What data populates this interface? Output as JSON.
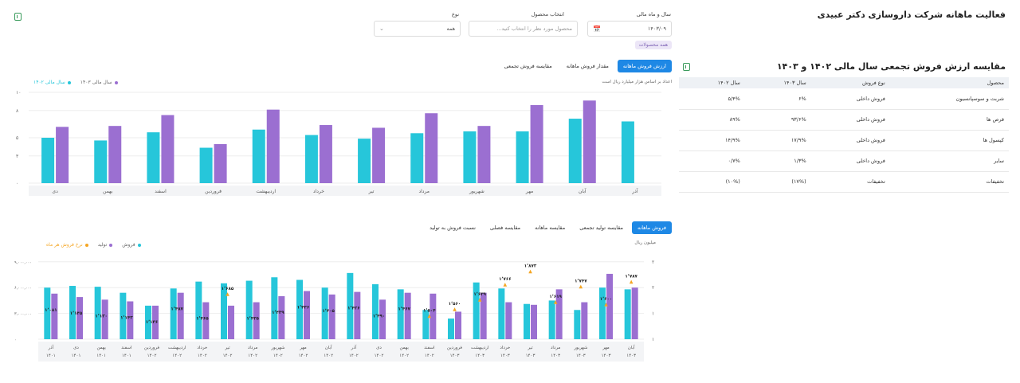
{
  "header": {
    "title": "فعالیت ماهانه شرکت داروسازی دکتر عبیدی"
  },
  "filters": {
    "year_month": {
      "label": "سال و ماه مالی",
      "value": "۱۴۰۳/۰۹"
    },
    "product": {
      "label": "انتخاب محصول",
      "placeholder": "محصول مورد نظر را انتخاب کنید..."
    },
    "type": {
      "label": "نوع",
      "value": "همه"
    },
    "chip": "همه محصولات"
  },
  "chart1": {
    "tabs": [
      "ارزش فروش ماهانه",
      "مقدار فروش ماهانه",
      "مقایسه فروش تجمعی"
    ],
    "active_tab": 0,
    "note": "اعداد بر اساس هزار میلیارد ریال است",
    "legend": [
      "سال مالی ۱۴۰۳",
      "سال مالی ۱۴۰۲"
    ],
    "colors": {
      "y1403": "#9b6fd1",
      "y1402": "#26c6da"
    }
  },
  "chart2": {
    "tabs": [
      "فروش ماهانه",
      "مقایسه تولید تجمعی",
      "مقایسه ماهانه",
      "مقایسه فصلی",
      "نسبت فروش به تولید"
    ],
    "active_tab": 0,
    "unit": "میلیون ریال",
    "legend": [
      "فروش",
      "تولید",
      "نرخ فروش هر ماه"
    ],
    "colors": {
      "sales": "#26c6da",
      "production": "#9b6fd1",
      "rate": "#f5a623"
    }
  },
  "chart_data": [
    {
      "type": "bar",
      "title": "",
      "ylim": [
        0,
        10
      ],
      "yticks": [
        "۰",
        "۳",
        "۵",
        "۸",
        "۱۰"
      ],
      "categories": [
        "آذر",
        "آبان",
        "مهر",
        "شهریور",
        "مرداد",
        "تیر",
        "خرداد",
        "اردیبهشت",
        "فروردین",
        "اسفند",
        "بهمن",
        "دی"
      ],
      "series": [
        {
          "name": "سال مالی ۱۴۰۲",
          "values": [
            6.8,
            7.1,
            5.7,
            5.7,
            5.5,
            4.9,
            5.3,
            5.9,
            3.9,
            5.6,
            4.7,
            5.0
          ]
        },
        {
          "name": "سال مالی ۱۴۰۳",
          "values": [
            null,
            9.1,
            8.6,
            6.3,
            7.7,
            6.1,
            6.4,
            8.1,
            4.3,
            7.5,
            6.3,
            6.2
          ]
        }
      ]
    },
    {
      "type": "bar",
      "title": "",
      "ylim": [
        0,
        10000000
      ],
      "yticks": [
        "۰",
        "۳,۰۰۰,۰۰۰",
        "۶,۰۰۰,۰۰۰",
        "۹,۰۰۰,۰۰۰"
      ],
      "y2ticks": [
        "۱",
        "۱",
        "۲",
        "۲"
      ],
      "categories": [
        [
          "آبان",
          "۱۴۰۳"
        ],
        [
          "مهر",
          "۱۴۰۳"
        ],
        [
          "شهریور",
          "۱۴۰۳"
        ],
        [
          "مرداد",
          "۱۴۰۳"
        ],
        [
          "تیر",
          "۱۴۰۳"
        ],
        [
          "خرداد",
          "۱۴۰۳"
        ],
        [
          "اردیبهشت",
          "۱۴۰۳"
        ],
        [
          "فروردین",
          "۱۴۰۳"
        ],
        [
          "اسفند",
          "۱۴۰۲"
        ],
        [
          "بهمن",
          "۱۴۰۲"
        ],
        [
          "دی",
          "۱۴۰۲"
        ],
        [
          "آذر",
          "۱۴۰۲"
        ],
        [
          "آبان",
          "۱۴۰۲"
        ],
        [
          "مهر",
          "۱۴۰۲"
        ],
        [
          "شهریور",
          "۱۴۰۲"
        ],
        [
          "مرداد",
          "۱۴۰۲"
        ],
        [
          "تیر",
          "۱۴۰۲"
        ],
        [
          "خرداد",
          "۱۴۰۲"
        ],
        [
          "اردیبهشت",
          "۱۴۰۲"
        ],
        [
          "فروردین",
          "۱۴۰۲"
        ],
        [
          "اسفند",
          "۱۴۰۱"
        ],
        [
          "بهمن",
          "۱۴۰۱"
        ],
        [
          "دی",
          "۱۴۰۱"
        ],
        [
          "آذر",
          "۱۴۰۱"
        ]
      ],
      "series": [
        {
          "name": "فروش",
          "values": [
            5.8,
            6.0,
            3.4,
            4.5,
            4.1,
            5.9,
            6.6,
            2.4,
            3.4,
            5.8,
            6.4,
            7.7,
            6.0,
            6.9,
            7.2,
            6.8,
            6.5,
            6.7,
            5.9,
            3.9,
            5.4,
            6.1,
            6.2,
            6.0
          ]
        },
        {
          "name": "تولید",
          "values": [
            6.0,
            7.6,
            4.3,
            5.8,
            4.0,
            4.3,
            5.4,
            3.2,
            5.3,
            5.4,
            4.6,
            5.5,
            5.2,
            5.6,
            5.0,
            4.3,
            3.9,
            4.3,
            5.4,
            3.9,
            4.4,
            4.6,
            4.9,
            5.3
          ]
        }
      ],
      "rate": {
        "name": "نرخ فروش هر ماه",
        "values": [
          1.787,
          1.6,
          1.747,
          1.619,
          1.873,
          1.766,
          1.639,
          1.56,
          1.504,
          null,
          null,
          null,
          null,
          null,
          null,
          null,
          1.685,
          null,
          null,
          null,
          null,
          null,
          null,
          null
        ],
        "labels": [
          "۱٬۷۸۷",
          "۱٬۶۰۰",
          "۱٬۷۴۷",
          "۱٬۶۱۹",
          "۱٬۸۷۳",
          "۱٬۷۶۶",
          "۱٬۶۳۹",
          "۱٬۵۶۰",
          "۱٬۵۰۴",
          "",
          "",
          "",
          "",
          "",
          "",
          "",
          "۱٬۶۸۵",
          "",
          "",
          "",
          "",
          "",
          "",
          ""
        ]
      },
      "bar_labels": [
        "",
        "",
        "",
        "",
        "",
        "",
        "",
        "",
        "",
        "۱٬۴۶۷",
        "۱٬۴۹۰",
        "۱٬۴۲۶",
        "۱٬۴۰۵",
        "۱٬۴۳۶",
        "۱٬۴۳۹",
        "۱٬۴۲۵",
        "",
        "۱٬۴۶۵",
        "۱٬۴۸۷",
        "۱٬۱۳۶",
        "۱٬۱۴۳",
        "۱٬۱۳۰",
        "۱٬۱۴۵",
        "۱٬۰۸۱"
      ]
    }
  ],
  "comparison": {
    "title": "مقایسه ارزش فروش تجمعی سال مالی ۱۴۰۲ و ۱۴۰۳",
    "headers": [
      "محصول",
      "نوع فروش",
      "سال ۱۴۰۳",
      "سال ۱۴۰۲"
    ],
    "rows": [
      [
        "شربت و سوسپانسیون",
        "فروش داخلی",
        "۶%",
        "۵/۴%"
      ],
      [
        "قرص ها",
        "فروش داخلی",
        "۹۳/۶%",
        "۸۹%"
      ],
      [
        "کپسول ها",
        "فروش داخلی",
        "۱۷/۹%",
        "۱۴/۹%"
      ],
      [
        "سایر",
        "فروش داخلی",
        "۱/۳%",
        "۰/۷%"
      ],
      [
        "تخفیفات",
        "تخفیفات",
        "(۱۷%)",
        "(۱۰%)"
      ]
    ]
  }
}
